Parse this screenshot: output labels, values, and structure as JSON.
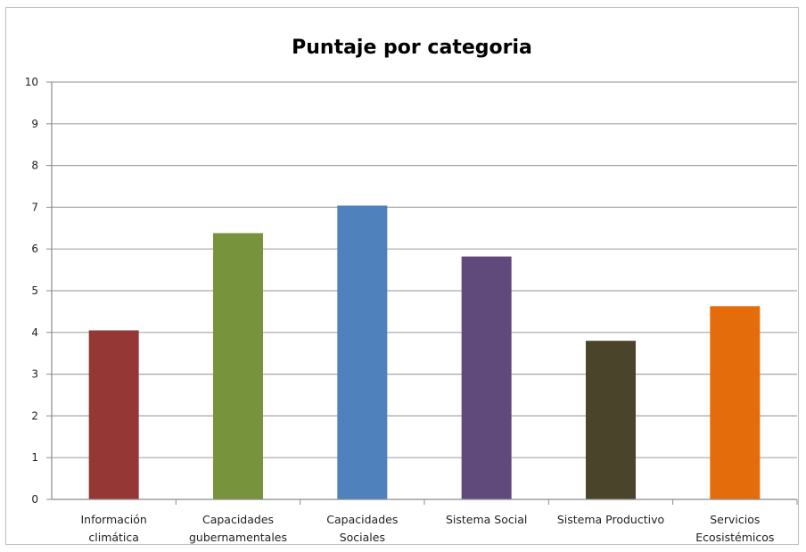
{
  "chart_data": {
    "type": "bar",
    "title": "Puntaje por categoria",
    "xlabel": "",
    "ylabel": "",
    "ylim": [
      0,
      10
    ],
    "yticks": [
      "0",
      "1",
      "2",
      "3",
      "4",
      "5",
      "6",
      "7",
      "8",
      "9",
      "10"
    ],
    "grid": true,
    "legend": "none",
    "categories": [
      [
        "Información",
        "climática"
      ],
      [
        "Capacidades",
        "gubernamentales"
      ],
      [
        "Capacidades",
        "Sociales"
      ],
      [
        "Sistema Social"
      ],
      [
        "Sistema Productivo"
      ],
      [
        "Servicios",
        "Ecosistémicos"
      ]
    ],
    "values": [
      4.05,
      6.38,
      7.04,
      5.82,
      3.8,
      4.63
    ],
    "colors": [
      "#953735",
      "#77933c",
      "#4f81bd",
      "#604a7b",
      "#4a452a",
      "#e46c0a"
    ]
  }
}
